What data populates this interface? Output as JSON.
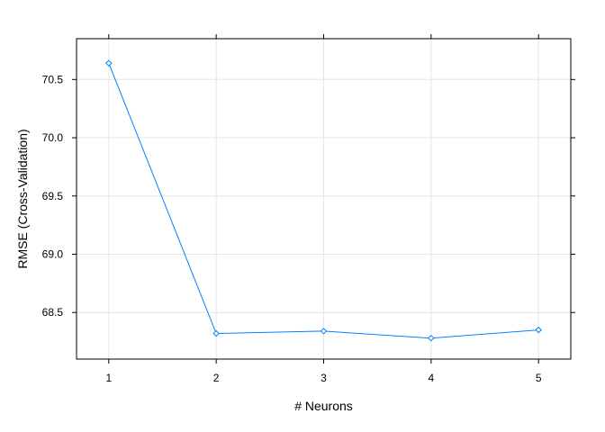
{
  "chart_data": {
    "type": "line",
    "title": "",
    "xlabel": "# Neurons",
    "ylabel": "RMSE (Cross-Validation)",
    "x": [
      1,
      2,
      3,
      4,
      5
    ],
    "xticks": [
      "1",
      "2",
      "3",
      "4",
      "5"
    ],
    "xlim": [
      0.7,
      5.3
    ],
    "yticks": [
      68.5,
      69.0,
      69.5,
      70.0,
      70.5
    ],
    "ytick_labels": [
      "68.5",
      "69.0",
      "69.5",
      "70.0",
      "70.5"
    ],
    "ylim": [
      68.1,
      70.85
    ],
    "grid": true,
    "series": [
      {
        "values": [
          70.64,
          68.32,
          68.34,
          68.28,
          68.35
        ],
        "color": "#0080ff",
        "marker": "diamond"
      }
    ]
  },
  "colors": {
    "series": "#0080ff",
    "grid": "#e6e6e6",
    "frame": "#000000"
  }
}
